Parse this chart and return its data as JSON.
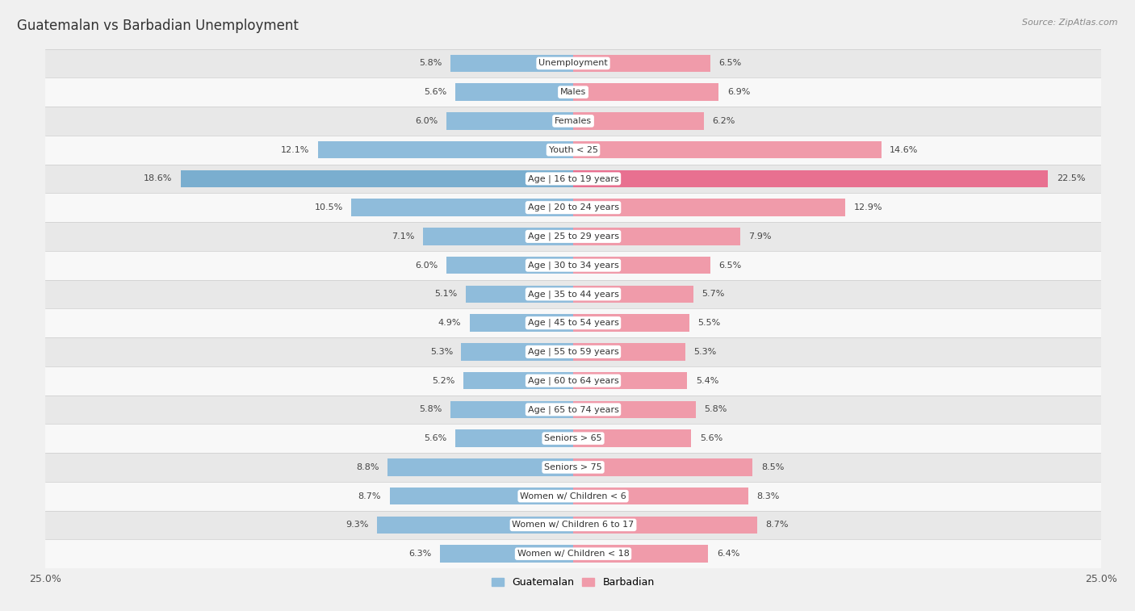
{
  "title": "Guatemalan vs Barbadian Unemployment",
  "source": "Source: ZipAtlas.com",
  "categories": [
    "Unemployment",
    "Males",
    "Females",
    "Youth < 25",
    "Age | 16 to 19 years",
    "Age | 20 to 24 years",
    "Age | 25 to 29 years",
    "Age | 30 to 34 years",
    "Age | 35 to 44 years",
    "Age | 45 to 54 years",
    "Age | 55 to 59 years",
    "Age | 60 to 64 years",
    "Age | 65 to 74 years",
    "Seniors > 65",
    "Seniors > 75",
    "Women w/ Children < 6",
    "Women w/ Children 6 to 17",
    "Women w/ Children < 18"
  ],
  "guatemalan": [
    5.8,
    5.6,
    6.0,
    12.1,
    18.6,
    10.5,
    7.1,
    6.0,
    5.1,
    4.9,
    5.3,
    5.2,
    5.8,
    5.6,
    8.8,
    8.7,
    9.3,
    6.3
  ],
  "barbadian": [
    6.5,
    6.9,
    6.2,
    14.6,
    22.5,
    12.9,
    7.9,
    6.5,
    5.7,
    5.5,
    5.3,
    5.4,
    5.8,
    5.6,
    8.5,
    8.3,
    8.7,
    6.4
  ],
  "guatemalan_color": "#8fbcdb",
  "barbadian_color": "#f09baa",
  "highlighted_guatemalan_color": "#7aaecf",
  "highlighted_barbadian_color": "#e87090",
  "axis_max": 25.0,
  "background_color": "#f0f0f0",
  "row_even_color": "#e8e8e8",
  "row_odd_color": "#f8f8f8",
  "bar_height": 0.6,
  "title_fontsize": 12,
  "label_fontsize": 8,
  "cat_fontsize": 8,
  "tick_fontsize": 9
}
